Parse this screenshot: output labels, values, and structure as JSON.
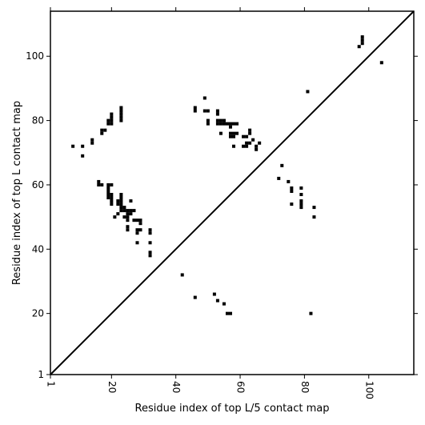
{
  "chart_data": {
    "type": "scatter",
    "title": "",
    "xlabel": "Residue index of top L/5 contact map",
    "ylabel": "Residue index of top L contact map",
    "xlim": [
      1,
      114
    ],
    "ylim": [
      1,
      114
    ],
    "xticks": [
      1,
      20,
      40,
      60,
      80,
      100
    ],
    "yticks": [
      1,
      20,
      40,
      60,
      80,
      100
    ],
    "grid": false,
    "legend": "none",
    "colors": {
      "points": "#000000",
      "diagonal": "#000000",
      "background": "#ffffff"
    },
    "diagonal": {
      "from": [
        1,
        1
      ],
      "to": [
        114,
        114
      ]
    },
    "series": [
      {
        "name": "",
        "note_region": "upper-left triangle (top L contacts)",
        "points": [
          [
            8,
            72
          ],
          [
            11,
            72
          ],
          [
            11,
            69
          ],
          [
            14,
            73
          ],
          [
            14,
            74
          ],
          [
            16,
            60
          ],
          [
            16,
            61
          ],
          [
            17,
            60
          ],
          [
            17,
            76
          ],
          [
            17,
            77
          ],
          [
            18,
            77
          ],
          [
            19,
            56
          ],
          [
            19,
            57
          ],
          [
            19,
            58
          ],
          [
            19,
            59
          ],
          [
            19,
            60
          ],
          [
            19,
            79
          ],
          [
            19,
            80
          ],
          [
            20,
            54
          ],
          [
            20,
            55
          ],
          [
            20,
            56
          ],
          [
            20,
            57
          ],
          [
            20,
            60
          ],
          [
            20,
            79
          ],
          [
            20,
            80
          ],
          [
            20,
            81
          ],
          [
            20,
            82
          ],
          [
            21,
            50
          ],
          [
            22,
            51
          ],
          [
            22,
            54
          ],
          [
            22,
            55
          ],
          [
            23,
            52
          ],
          [
            23,
            53
          ],
          [
            23,
            54
          ],
          [
            23,
            55
          ],
          [
            23,
            56
          ],
          [
            23,
            57
          ],
          [
            23,
            80
          ],
          [
            23,
            81
          ],
          [
            23,
            82
          ],
          [
            23,
            83
          ],
          [
            23,
            84
          ],
          [
            24,
            50
          ],
          [
            24,
            52
          ],
          [
            24,
            53
          ],
          [
            25,
            49
          ],
          [
            25,
            50
          ],
          [
            25,
            51
          ],
          [
            25,
            52
          ],
          [
            26,
            51
          ],
          [
            26,
            52
          ],
          [
            26,
            55
          ],
          [
            27,
            49
          ],
          [
            27,
            52
          ],
          [
            28,
            42
          ],
          [
            28,
            45
          ],
          [
            28,
            46
          ],
          [
            28,
            49
          ],
          [
            29,
            46
          ],
          [
            29,
            48
          ],
          [
            29,
            49
          ],
          [
            25,
            46
          ],
          [
            25,
            47
          ],
          [
            32,
            38
          ],
          [
            32,
            39
          ],
          [
            32,
            42
          ],
          [
            32,
            45
          ],
          [
            32,
            46
          ],
          [
            46,
            83
          ],
          [
            46,
            84
          ],
          [
            49,
            83
          ],
          [
            50,
            79
          ],
          [
            50,
            80
          ],
          [
            50,
            83
          ],
          [
            49,
            87
          ],
          [
            53,
            79
          ],
          [
            53,
            80
          ],
          [
            53,
            82
          ],
          [
            53,
            83
          ],
          [
            54,
            79
          ],
          [
            54,
            80
          ],
          [
            55,
            79
          ],
          [
            55,
            80
          ],
          [
            54,
            76
          ],
          [
            56,
            79
          ],
          [
            57,
            79
          ],
          [
            58,
            79
          ],
          [
            59,
            79
          ],
          [
            57,
            78
          ],
          [
            57,
            75
          ],
          [
            57,
            76
          ],
          [
            58,
            75
          ],
          [
            58,
            76
          ],
          [
            59,
            76
          ],
          [
            58,
            72
          ],
          [
            61,
            72
          ],
          [
            61,
            75
          ],
          [
            62,
            72
          ],
          [
            62,
            73
          ],
          [
            62,
            75
          ],
          [
            63,
            73
          ],
          [
            63,
            76
          ],
          [
            63,
            77
          ],
          [
            64,
            74
          ],
          [
            65,
            71
          ],
          [
            65,
            72
          ],
          [
            66,
            73
          ]
        ]
      },
      {
        "name": "",
        "note_region": "lower-right triangle (top L/5 contacts)",
        "points": [
          [
            42,
            32
          ],
          [
            46,
            25
          ],
          [
            52,
            26
          ],
          [
            53,
            24
          ],
          [
            55,
            23
          ],
          [
            56,
            20
          ],
          [
            57,
            20
          ],
          [
            72,
            62
          ],
          [
            73,
            66
          ],
          [
            75,
            61
          ],
          [
            76,
            58
          ],
          [
            76,
            59
          ],
          [
            76,
            54
          ],
          [
            79,
            53
          ],
          [
            79,
            54
          ],
          [
            79,
            55
          ],
          [
            79,
            57
          ],
          [
            79,
            59
          ],
          [
            81,
            89
          ],
          [
            82,
            20
          ],
          [
            83,
            50
          ],
          [
            83,
            53
          ],
          [
            97,
            103
          ],
          [
            98,
            104
          ],
          [
            98,
            105
          ],
          [
            98,
            106
          ],
          [
            104,
            98
          ]
        ]
      }
    ]
  }
}
